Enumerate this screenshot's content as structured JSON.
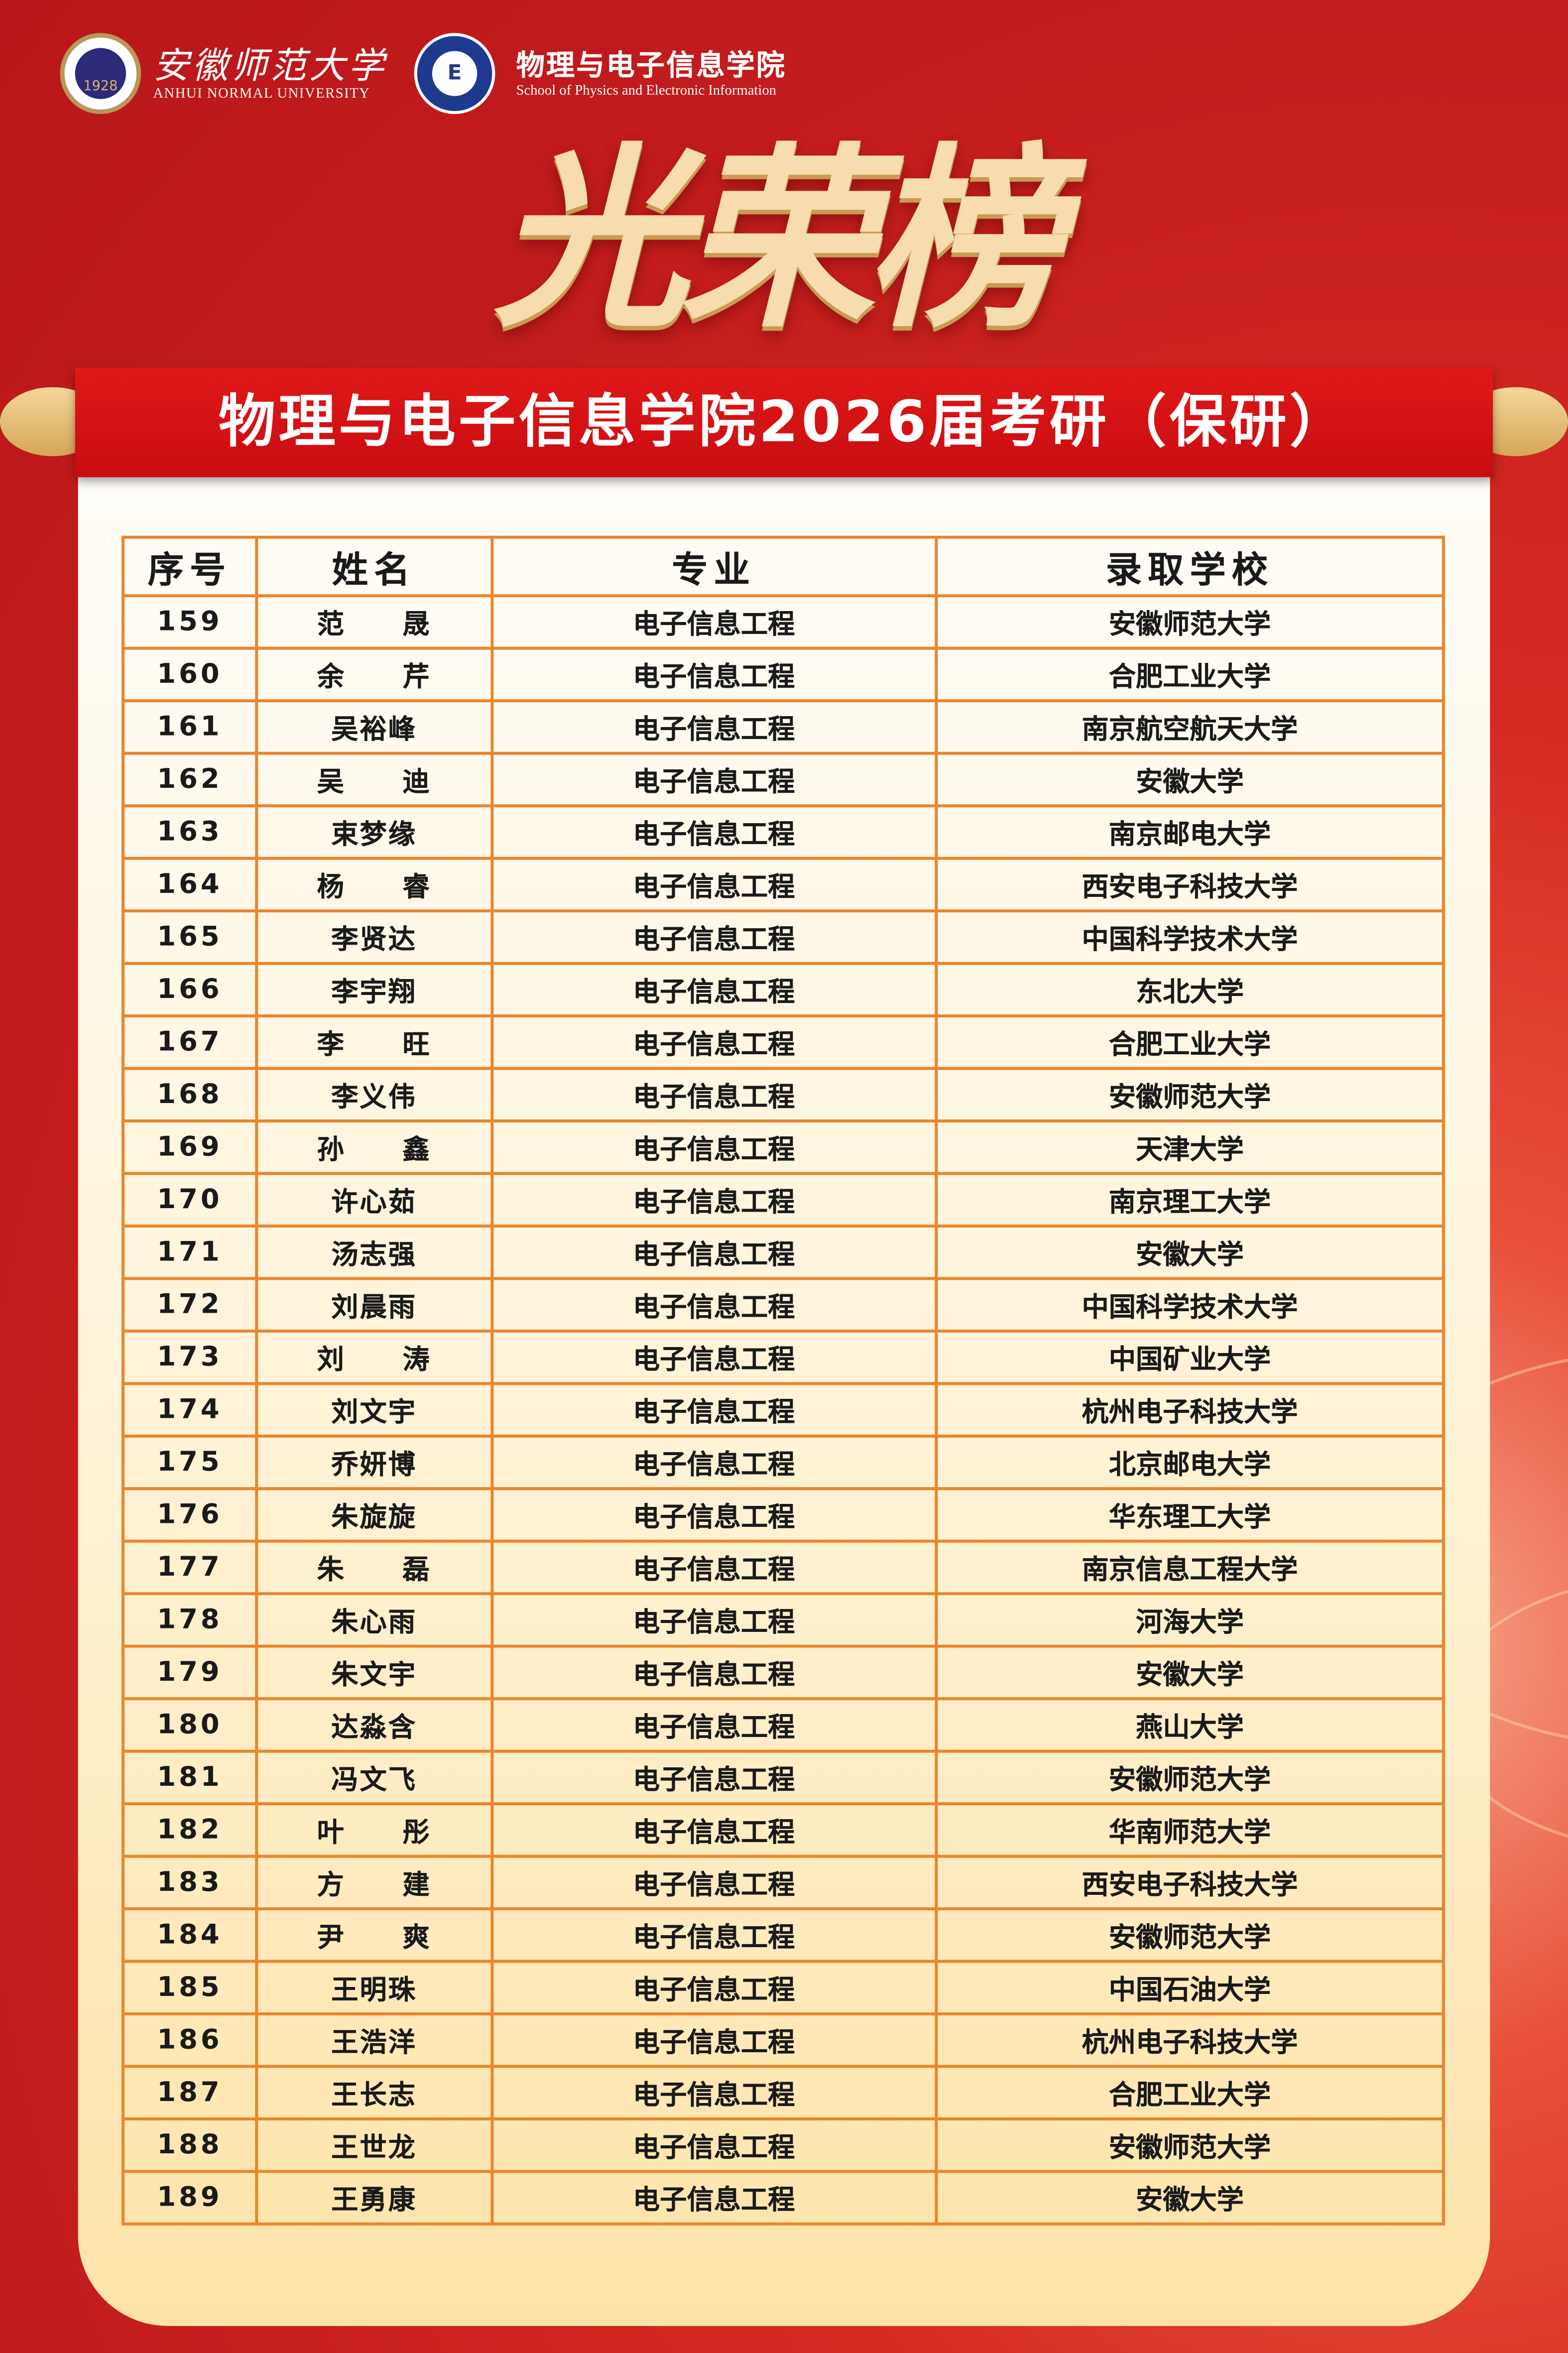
{
  "header": {
    "university_cn": "安徽师范大学",
    "university_en": "ANHUI NORMAL UNIVERSITY",
    "university_seal_year": "1928",
    "school_cn": "物理与电子信息学院",
    "school_en": "School of Physics and Electronic Information",
    "school_seal_mark": "E"
  },
  "title": "光荣榜",
  "banner": "物理与电子信息学院2026届考研（保研）",
  "colors": {
    "background": "#c8201f",
    "banner": "#d91414",
    "table_border": "#e8862e",
    "card": "#fff3d8",
    "gold": "#f6dcae"
  },
  "table": {
    "headers": [
      "序号",
      "姓名",
      "专业",
      "录取学校"
    ],
    "rows": [
      [
        "159",
        "范　　晟",
        "电子信息工程",
        "安徽师范大学"
      ],
      [
        "160",
        "余　　芹",
        "电子信息工程",
        "合肥工业大学"
      ],
      [
        "161",
        "吴裕峰",
        "电子信息工程",
        "南京航空航天大学"
      ],
      [
        "162",
        "吴　　迪",
        "电子信息工程",
        "安徽大学"
      ],
      [
        "163",
        "束梦缘",
        "电子信息工程",
        "南京邮电大学"
      ],
      [
        "164",
        "杨　　睿",
        "电子信息工程",
        "西安电子科技大学"
      ],
      [
        "165",
        "李贤达",
        "电子信息工程",
        "中国科学技术大学"
      ],
      [
        "166",
        "李宇翔",
        "电子信息工程",
        "东北大学"
      ],
      [
        "167",
        "李　　旺",
        "电子信息工程",
        "合肥工业大学"
      ],
      [
        "168",
        "李义伟",
        "电子信息工程",
        "安徽师范大学"
      ],
      [
        "169",
        "孙　　鑫",
        "电子信息工程",
        "天津大学"
      ],
      [
        "170",
        "许心茹",
        "电子信息工程",
        "南京理工大学"
      ],
      [
        "171",
        "汤志强",
        "电子信息工程",
        "安徽大学"
      ],
      [
        "172",
        "刘晨雨",
        "电子信息工程",
        "中国科学技术大学"
      ],
      [
        "173",
        "刘　　涛",
        "电子信息工程",
        "中国矿业大学"
      ],
      [
        "174",
        "刘文宇",
        "电子信息工程",
        "杭州电子科技大学"
      ],
      [
        "175",
        "乔妍博",
        "电子信息工程",
        "北京邮电大学"
      ],
      [
        "176",
        "朱旋旋",
        "电子信息工程",
        "华东理工大学"
      ],
      [
        "177",
        "朱　　磊",
        "电子信息工程",
        "南京信息工程大学"
      ],
      [
        "178",
        "朱心雨",
        "电子信息工程",
        "河海大学"
      ],
      [
        "179",
        "朱文宇",
        "电子信息工程",
        "安徽大学"
      ],
      [
        "180",
        "达淼含",
        "电子信息工程",
        "燕山大学"
      ],
      [
        "181",
        "冯文飞",
        "电子信息工程",
        "安徽师范大学"
      ],
      [
        "182",
        "叶　　彤",
        "电子信息工程",
        "华南师范大学"
      ],
      [
        "183",
        "方　　建",
        "电子信息工程",
        "西安电子科技大学"
      ],
      [
        "184",
        "尹　　爽",
        "电子信息工程",
        "安徽师范大学"
      ],
      [
        "185",
        "王明珠",
        "电子信息工程",
        "中国石油大学"
      ],
      [
        "186",
        "王浩洋",
        "电子信息工程",
        "杭州电子科技大学"
      ],
      [
        "187",
        "王长志",
        "电子信息工程",
        "合肥工业大学"
      ],
      [
        "188",
        "王世龙",
        "电子信息工程",
        "安徽师范大学"
      ],
      [
        "189",
        "王勇康",
        "电子信息工程",
        "安徽大学"
      ]
    ]
  }
}
